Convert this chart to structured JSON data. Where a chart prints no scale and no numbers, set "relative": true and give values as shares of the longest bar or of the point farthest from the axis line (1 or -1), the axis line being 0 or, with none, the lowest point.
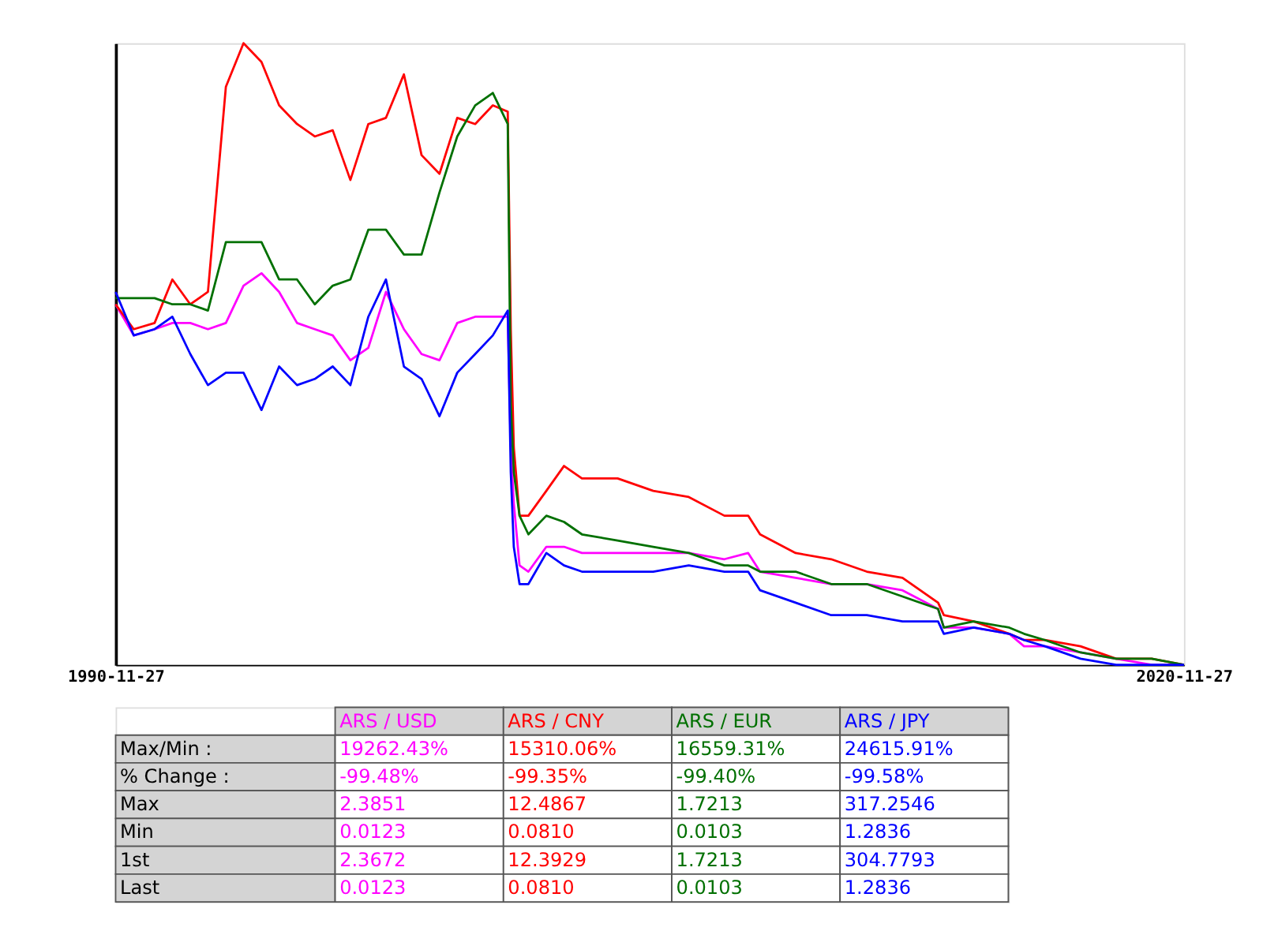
{
  "chart_data": {
    "type": "line",
    "relative": true,
    "x": [
      "1990-11-27",
      "1991-06",
      "1992-01",
      "1992-07",
      "1993-01",
      "1993-07",
      "1994-01",
      "1994-07",
      "1995-01",
      "1995-07",
      "1996-01",
      "1996-07",
      "1997-01",
      "1997-07",
      "1998-01",
      "1998-07",
      "1999-01",
      "1999-07",
      "2000-01",
      "2000-07",
      "2001-01",
      "2001-07",
      "2001-12",
      "2002-01",
      "2002-02",
      "2002-04",
      "2002-07",
      "2003-01",
      "2003-07",
      "2004-01",
      "2005-01",
      "2006-01",
      "2007-01",
      "2008-01",
      "2008-09",
      "2009-01",
      "2010-01",
      "2011-01",
      "2012-01",
      "2013-01",
      "2014-01",
      "2014-03",
      "2015-01",
      "2016-01",
      "2016-06",
      "2017-01",
      "2018-01",
      "2019-01",
      "2020-01",
      "2020-11-27"
    ],
    "xlim": [
      "1990-11-27",
      "2020-11-27"
    ],
    "xticks": [
      "1990-11-27",
      "2020-11-27"
    ],
    "series": [
      {
        "name": "ARS / USD",
        "color": "#ff00ff",
        "values": [
          0.58,
          0.53,
          0.54,
          0.55,
          0.55,
          0.54,
          0.55,
          0.61,
          0.63,
          0.6,
          0.55,
          0.54,
          0.53,
          0.49,
          0.51,
          0.6,
          0.54,
          0.5,
          0.49,
          0.55,
          0.56,
          0.56,
          0.56,
          0.35,
          0.26,
          0.16,
          0.15,
          0.19,
          0.19,
          0.18,
          0.18,
          0.18,
          0.18,
          0.17,
          0.18,
          0.15,
          0.14,
          0.13,
          0.13,
          0.12,
          0.09,
          0.06,
          0.06,
          0.05,
          0.03,
          0.03,
          0.02,
          0.01,
          0,
          0
        ]
      },
      {
        "name": "ARS / CNY",
        "color": "#ff0000",
        "values": [
          0.58,
          0.54,
          0.55,
          0.62,
          0.58,
          0.6,
          0.93,
          1,
          0.97,
          0.9,
          0.87,
          0.85,
          0.86,
          0.78,
          0.87,
          0.88,
          0.95,
          0.82,
          0.79,
          0.88,
          0.87,
          0.9,
          0.89,
          0.54,
          0.35,
          0.24,
          0.24,
          0.28,
          0.32,
          0.3,
          0.3,
          0.28,
          0.27,
          0.24,
          0.24,
          0.21,
          0.18,
          0.17,
          0.15,
          0.14,
          0.1,
          0.08,
          0.07,
          0.05,
          0.04,
          0.04,
          0.03,
          0.01,
          0.01,
          0
        ]
      },
      {
        "name": "ARS / EUR",
        "color": "#007000",
        "values": [
          0.59,
          0.59,
          0.59,
          0.58,
          0.58,
          0.57,
          0.68,
          0.68,
          0.68,
          0.62,
          0.62,
          0.58,
          0.61,
          0.62,
          0.7,
          0.7,
          0.66,
          0.66,
          0.76,
          0.85,
          0.9,
          0.92,
          0.87,
          0.42,
          0.31,
          0.24,
          0.21,
          0.24,
          0.23,
          0.21,
          0.2,
          0.19,
          0.18,
          0.16,
          0.16,
          0.15,
          0.15,
          0.13,
          0.13,
          0.11,
          0.09,
          0.06,
          0.07,
          0.06,
          0.05,
          0.04,
          0.02,
          0.01,
          0.01,
          0
        ]
      },
      {
        "name": "ARS / JPY",
        "color": "#0000ff",
        "values": [
          0.6,
          0.53,
          0.54,
          0.56,
          0.5,
          0.45,
          0.47,
          0.47,
          0.41,
          0.48,
          0.45,
          0.46,
          0.48,
          0.45,
          0.56,
          0.62,
          0.48,
          0.46,
          0.4,
          0.47,
          0.5,
          0.53,
          0.57,
          0.31,
          0.19,
          0.13,
          0.13,
          0.18,
          0.16,
          0.15,
          0.15,
          0.15,
          0.16,
          0.15,
          0.15,
          0.12,
          0.1,
          0.08,
          0.08,
          0.07,
          0.07,
          0.05,
          0.06,
          0.05,
          0.04,
          0.03,
          0.01,
          0,
          0,
          0
        ]
      }
    ],
    "annotations": [
      "Max/Min :",
      "19262.43%",
      "15310.06%",
      "16559.31%",
      "24615.91%",
      "% Change :",
      "-99.48%",
      "-99.35%",
      "-99.40%",
      "-99.58%",
      "Max",
      "2.3851",
      "12.4867",
      "1.7213",
      "317.2546",
      "Min",
      "0.0123",
      "0.0810",
      "0.0103",
      "1.2836",
      "1st",
      "2.3672",
      "12.3929",
      "1.7213",
      "304.7793",
      "Last",
      "0.0123",
      "0.0810",
      "0.0103",
      "1.2836"
    ],
    "grid": false
  }
}
